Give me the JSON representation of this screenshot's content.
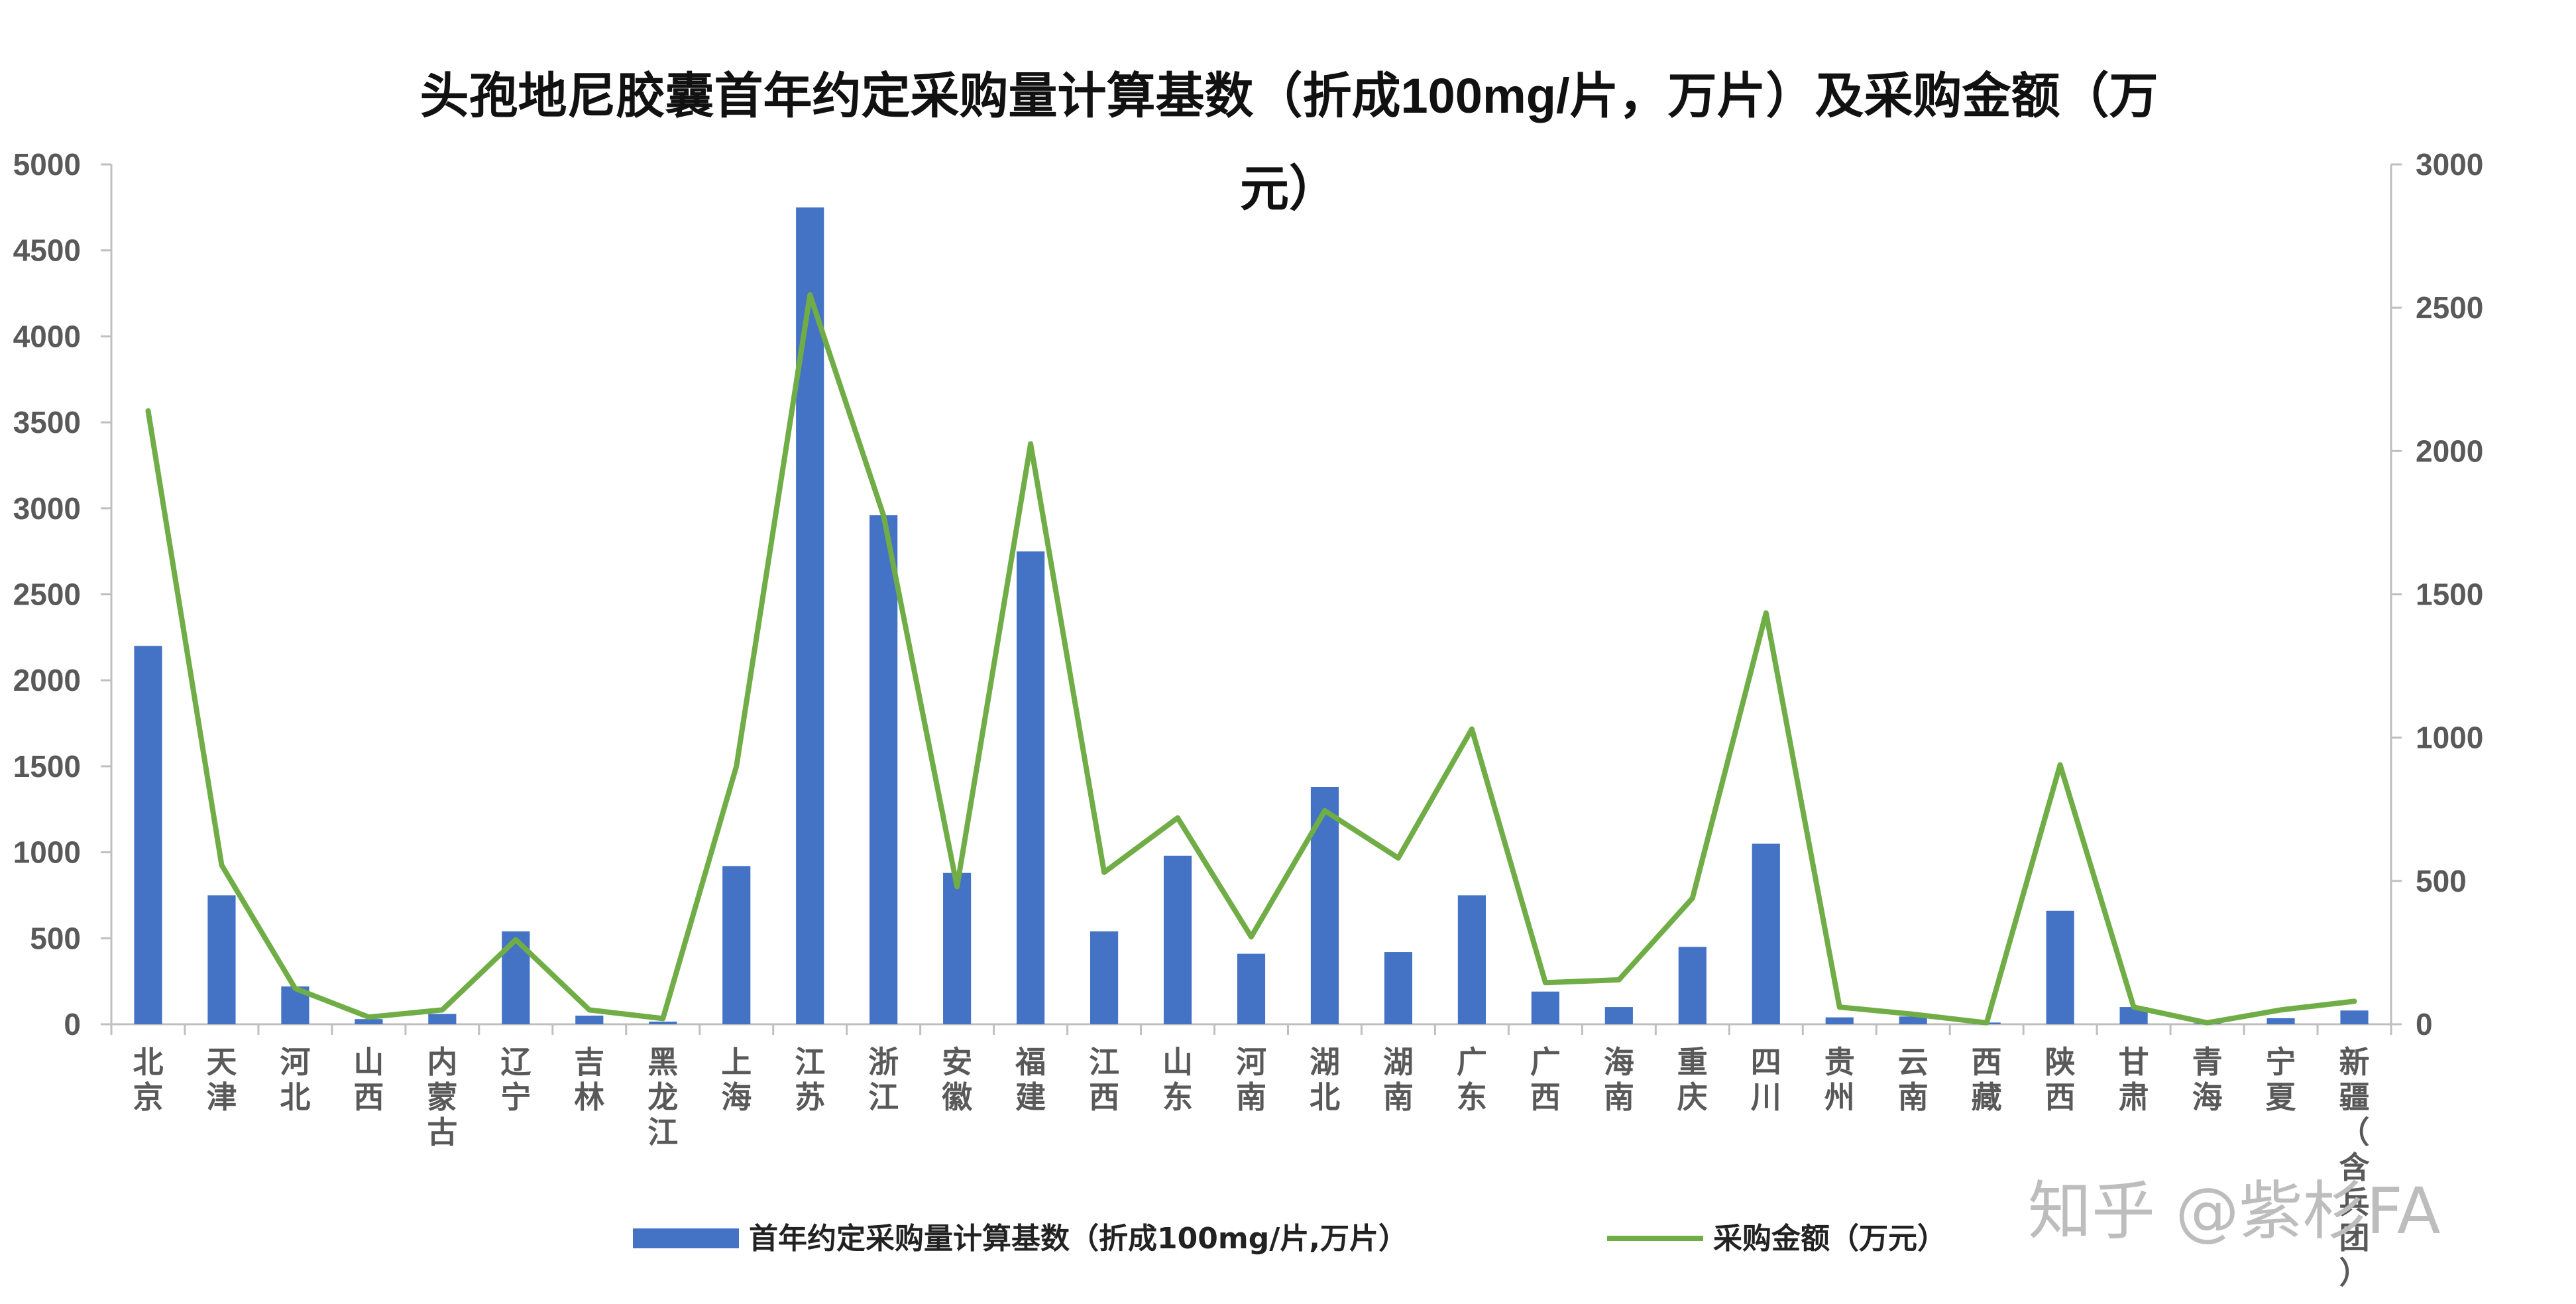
{
  "watermark": "知乎 @紫杉FA",
  "colors": {
    "bar": "#4472C4",
    "line": "#70AD47",
    "axis": "#BFBFBF",
    "text": "#595959"
  },
  "chart_data": {
    "type": "bar",
    "title_lines": [
      "头孢地尼胶囊首年约定采购量计算基数（折成100mg/片，万片）及采购金额（万",
      "元）"
    ],
    "categories": [
      "北京",
      "天津",
      "河北",
      "山西",
      "内蒙古",
      "辽宁",
      "吉林",
      "黑龙江",
      "上海",
      "江苏",
      "浙江",
      "安徽",
      "福建",
      "江西",
      "山东",
      "河南",
      "湖北",
      "湖南",
      "广东",
      "广西",
      "海南",
      "重庆",
      "四川",
      "贵州",
      "云南",
      "西藏",
      "陕西",
      "甘肃",
      "青海",
      "宁夏",
      "新疆（含兵团）"
    ],
    "series": [
      {
        "name": "首年约定采购量计算基数（折成100mg/片,万片）",
        "type": "bar",
        "axis": "left",
        "values": [
          2200,
          750,
          220,
          30,
          60,
          540,
          50,
          15,
          920,
          4750,
          2960,
          880,
          2750,
          540,
          980,
          410,
          1380,
          420,
          750,
          190,
          100,
          450,
          1050,
          40,
          45,
          10,
          660,
          100,
          5,
          35,
          80
        ]
      },
      {
        "name": "采购金额（万元）",
        "type": "line",
        "axis": "right",
        "values": [
          2140,
          555,
          125,
          25,
          50,
          295,
          50,
          20,
          900,
          2545,
          1775,
          480,
          2025,
          530,
          720,
          305,
          745,
          580,
          1030,
          145,
          155,
          440,
          1435,
          60,
          35,
          5,
          905,
          60,
          5,
          50,
          80
        ]
      }
    ],
    "y_left": {
      "min": 0,
      "max": 5000,
      "ticks": [
        0,
        500,
        1000,
        1500,
        2000,
        2500,
        3000,
        3500,
        4000,
        4500,
        5000
      ]
    },
    "y_right": {
      "min": 0,
      "max": 3000,
      "ticks": [
        0,
        500,
        1000,
        1500,
        2000,
        2500,
        3000
      ]
    },
    "grid": false,
    "legend_position": "bottom"
  }
}
